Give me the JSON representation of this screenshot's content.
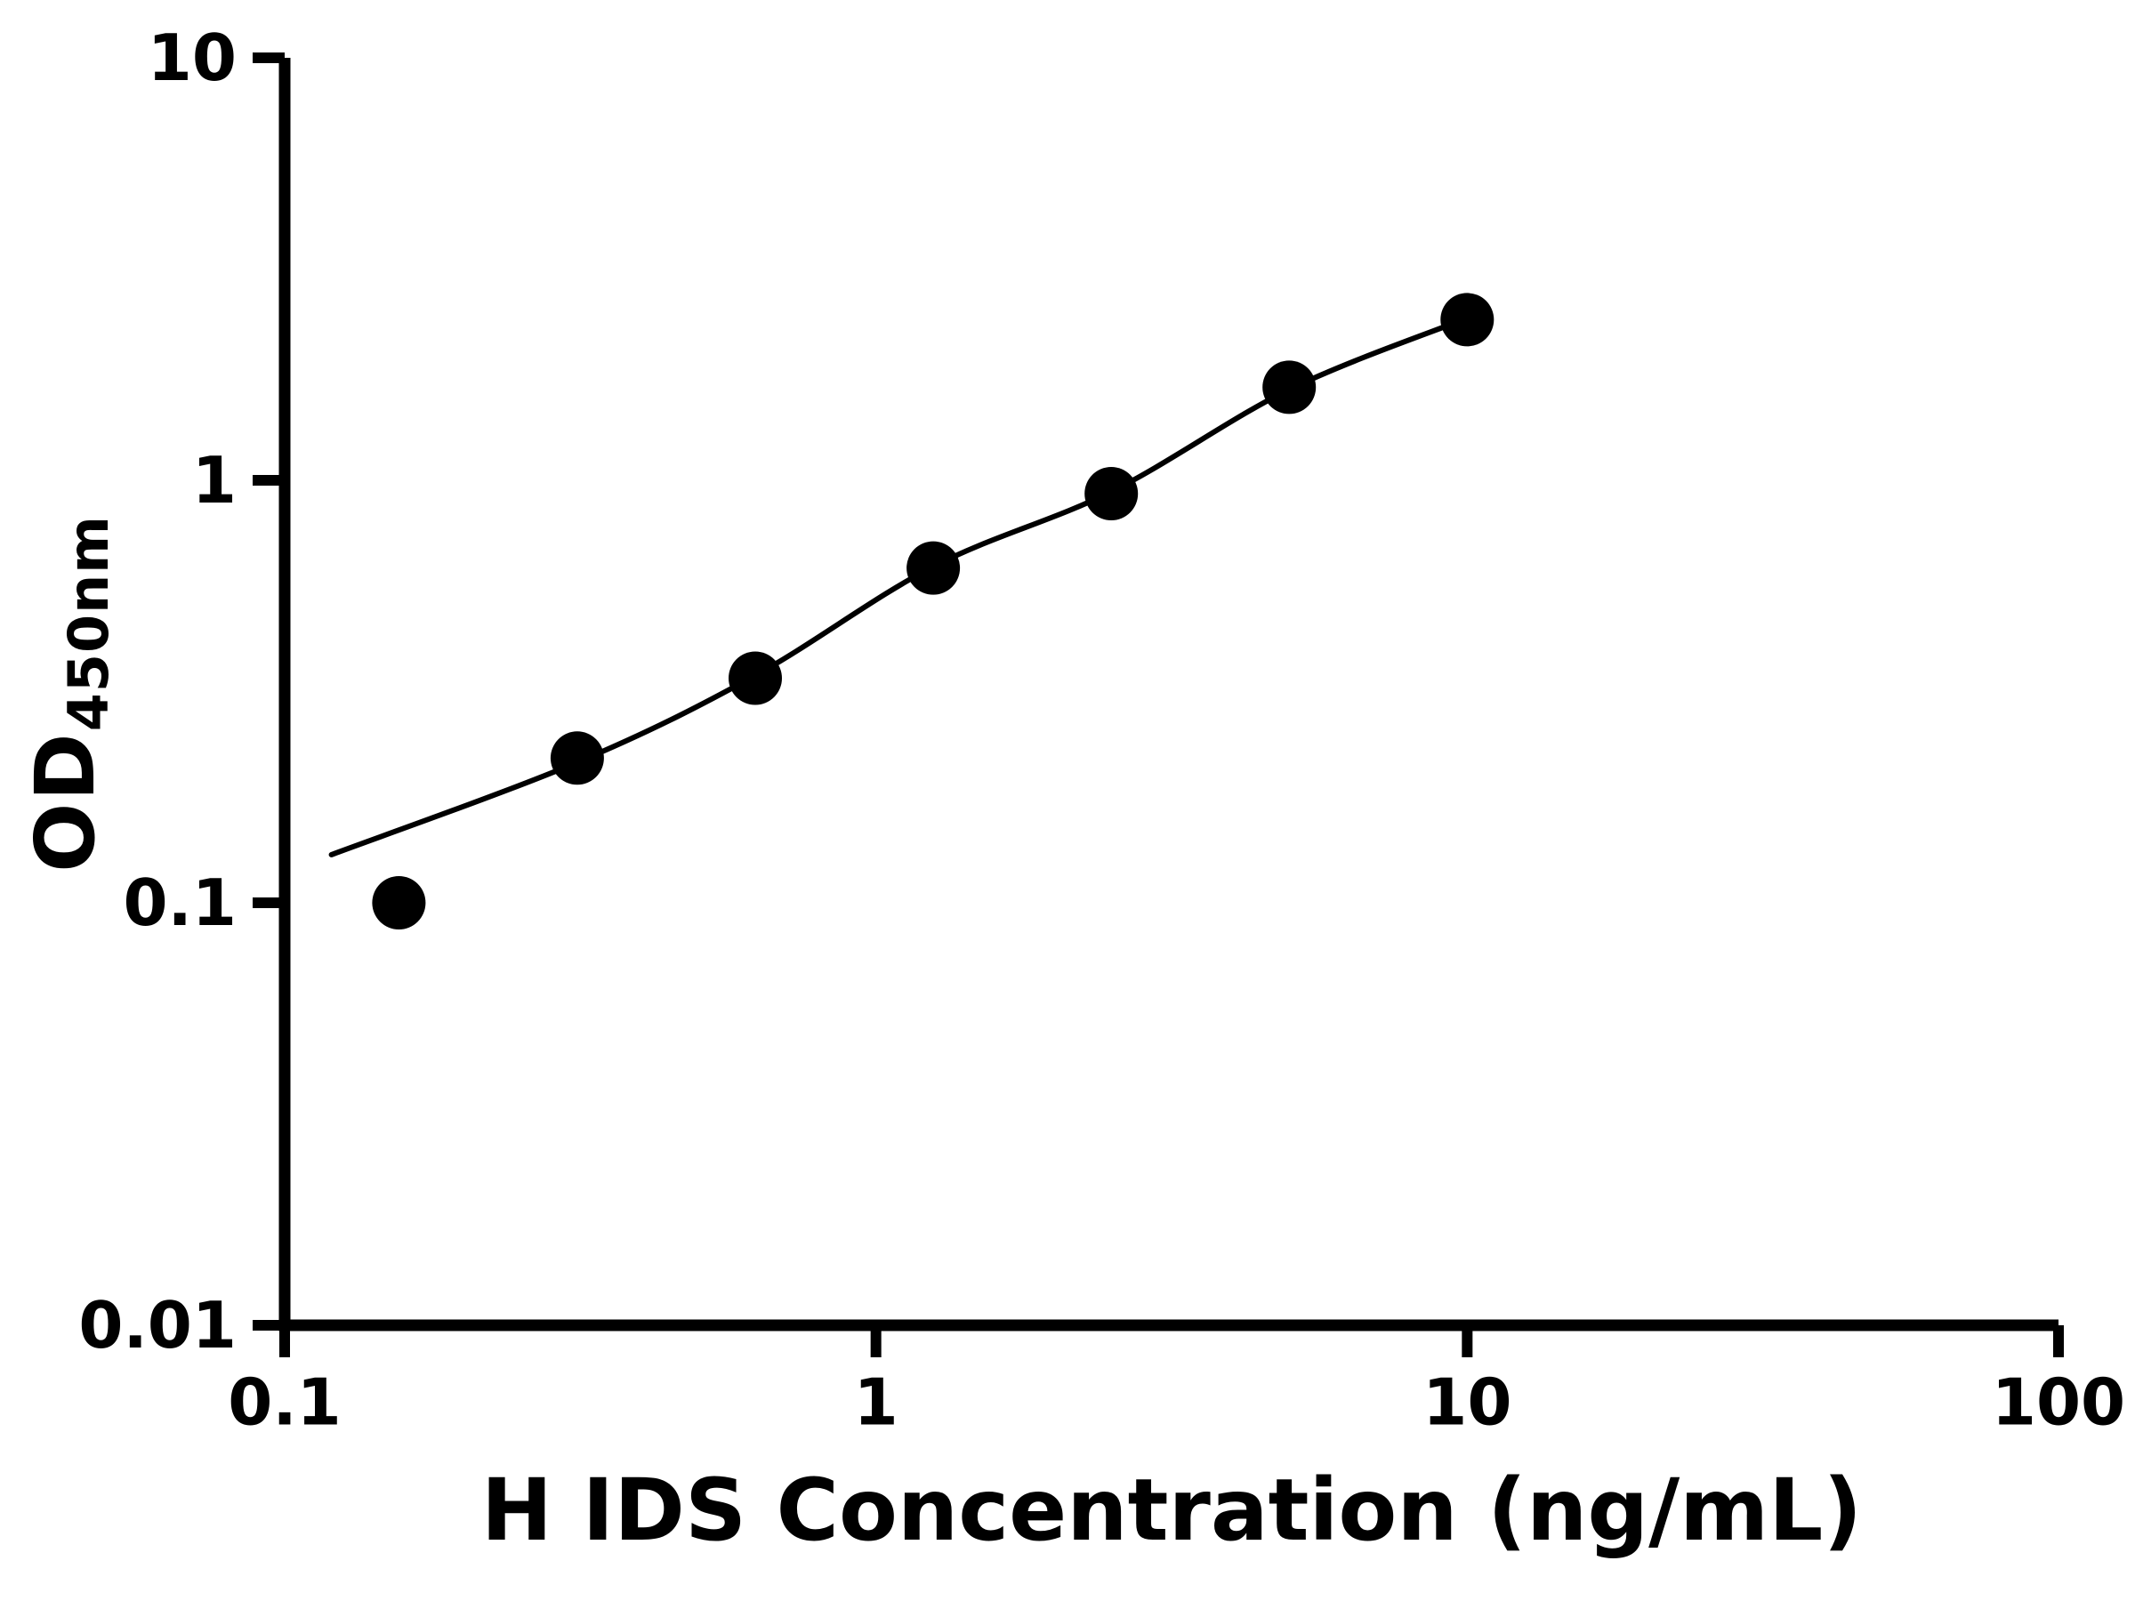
{
  "chart": {
    "xlabel": "H IDS Concentration (ng/mL)",
    "ylabel_main": "OD",
    "ylabel_sub": "450nm"
  },
  "chart_data": {
    "type": "scatter",
    "title": "",
    "xlabel": "H IDS Concentration (ng/mL)",
    "ylabel": "OD450nm",
    "xscale": "log",
    "yscale": "log",
    "xlim": [
      0.1,
      100
    ],
    "ylim": [
      0.01,
      10
    ],
    "grid": false,
    "legend": "none",
    "background_color": "#ffffff",
    "axis_color": "#000000",
    "marker_color": "#000000",
    "line_color": "#000000",
    "x": [
      0.156,
      0.3125,
      0.625,
      1.25,
      2.5,
      5,
      10
    ],
    "y": [
      0.1,
      0.22,
      0.34,
      0.62,
      0.93,
      1.66,
      2.4
    ],
    "fit_curve": [
      [
        0.12,
        0.13
      ],
      [
        0.3125,
        0.215
      ],
      [
        0.625,
        0.345
      ],
      [
        1.25,
        0.625
      ],
      [
        2.5,
        0.94
      ],
      [
        5,
        1.64
      ],
      [
        10,
        2.42
      ]
    ],
    "x_ticks": [
      {
        "value": 0.1,
        "label": "0.1"
      },
      {
        "value": 1,
        "label": "1"
      },
      {
        "value": 10,
        "label": "10"
      },
      {
        "value": 100,
        "label": "100"
      }
    ],
    "y_ticks": [
      {
        "value": 0.01,
        "label": "0.01"
      },
      {
        "value": 0.1,
        "label": "0.1"
      },
      {
        "value": 1,
        "label": "1"
      },
      {
        "value": 10,
        "label": "10"
      }
    ]
  }
}
